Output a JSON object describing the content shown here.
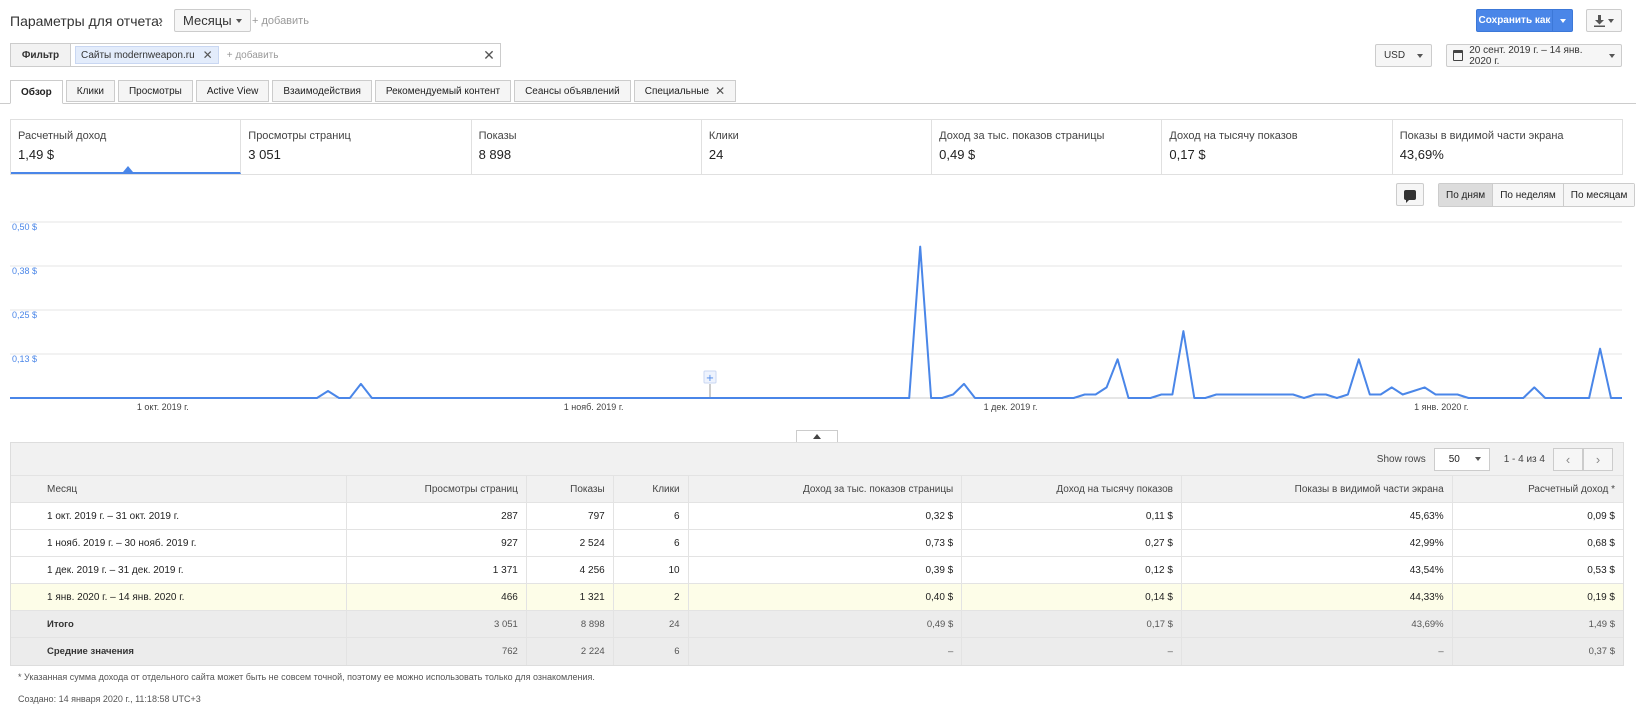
{
  "header": {
    "title": "Параметры для отчета:",
    "dimension": "Месяцы",
    "add_label": "+ добавить",
    "save_label": "Сохранить как"
  },
  "filter": {
    "label": "Фильтр",
    "chip": "Сайты modernweapon.ru",
    "add_placeholder": "+ добавить",
    "currency": "USD",
    "date_range": "20 сент. 2019 г. – 14 янв. 2020 г."
  },
  "tabs": [
    {
      "label": "Обзор"
    },
    {
      "label": "Клики"
    },
    {
      "label": "Просмотры"
    },
    {
      "label": "Active View"
    },
    {
      "label": "Взаимодействия"
    },
    {
      "label": "Рекомендуемый контент"
    },
    {
      "label": "Сеансы объявлений"
    },
    {
      "label": "Специальные"
    }
  ],
  "metrics": [
    {
      "label": "Расчетный доход",
      "value": "1,49 $"
    },
    {
      "label": "Просмотры страниц",
      "value": "3 051"
    },
    {
      "label": "Показы",
      "value": "8 898"
    },
    {
      "label": "Клики",
      "value": "24"
    },
    {
      "label": "Доход за тыс. показов страницы",
      "value": "0,49 $"
    },
    {
      "label": "Доход на тысячу показов",
      "value": "0,17 $"
    },
    {
      "label": "Показы в видимой части экрана",
      "value": "43,69%"
    }
  ],
  "granularity": {
    "day": "По дням",
    "week": "По неделям",
    "month": "По месяцам",
    "selected": "По дням"
  },
  "chart_data": {
    "type": "line",
    "series": [
      {
        "values": [
          0,
          0,
          0,
          0,
          0,
          0,
          0,
          0,
          0,
          0,
          0,
          0,
          0,
          0,
          0,
          0,
          0,
          0,
          0,
          0,
          0,
          0,
          0,
          0,
          0,
          0,
          0,
          0,
          0,
          0.02,
          0,
          0,
          0.04,
          0,
          0,
          0,
          0,
          0,
          0,
          0,
          0,
          0,
          0,
          0,
          0,
          0,
          0,
          0,
          0,
          0,
          0,
          0,
          0,
          0,
          0,
          0,
          0,
          0,
          0,
          0,
          0,
          0,
          0,
          0,
          0,
          0,
          0,
          0,
          0,
          0,
          0,
          0,
          0,
          0,
          0,
          0,
          0,
          0,
          0,
          0,
          0,
          0,
          0,
          0.43,
          0,
          0,
          0.01,
          0.04,
          0,
          0,
          0,
          0,
          0,
          0,
          0,
          0,
          0,
          0,
          0.01,
          0.01,
          0.03,
          0.11,
          0,
          0,
          0,
          0.01,
          0.01,
          0.19,
          0,
          0,
          0.01,
          0.01,
          0.01,
          0.01,
          0.01,
          0.01,
          0.01,
          0.01,
          0,
          0.01,
          0.01,
          0,
          0.01,
          0.11,
          0.01,
          0.01,
          0.03,
          0.01,
          0.02,
          0.03,
          0.01,
          0.01,
          0.01,
          0,
          0,
          0,
          0,
          0,
          0,
          0.03,
          0,
          0,
          0,
          0,
          0,
          0.14,
          0,
          0
        ]
      }
    ],
    "x_start": "2019-09-20",
    "x_end": "2020-01-14",
    "x_ticks": [
      "1 окт. 2019 г.",
      "1 нояб. 2019 г.",
      "1 дек. 2019 г.",
      "1 янв. 2020 г."
    ],
    "y_ticks": [
      "0,50 $",
      "0,38 $",
      "0,25 $",
      "0,13 $"
    ],
    "y_tick_values": [
      0.5,
      0.375,
      0.25,
      0.125
    ],
    "ylim": [
      0,
      0.5
    ],
    "color": "#4a86e8",
    "grid": true
  },
  "table": {
    "show_rows_label": "Show rows",
    "rows_per_page": "50",
    "range_label": "1 - 4 из 4",
    "columns": [
      "Месяц",
      "Просмотры страниц",
      "Показы",
      "Клики",
      "Доход за тыс. показов страницы",
      "Доход на тысячу показов",
      "Показы в видимой части экрана",
      "Расчетный доход *"
    ],
    "rows": [
      [
        "1 окт. 2019 г. – 31 окт. 2019 г.",
        "287",
        "797",
        "6",
        "0,32 $",
        "0,11 $",
        "45,63%",
        "0,09 $"
      ],
      [
        "1 нояб. 2019 г. – 30 нояб. 2019 г.",
        "927",
        "2 524",
        "6",
        "0,73 $",
        "0,27 $",
        "42,99%",
        "0,68 $"
      ],
      [
        "1 дек. 2019 г. – 31 дек. 2019 г.",
        "1 371",
        "4 256",
        "10",
        "0,39 $",
        "0,12 $",
        "43,54%",
        "0,53 $"
      ],
      [
        "1 янв. 2020 г. – 14 янв. 2020 г.",
        "466",
        "1 321",
        "2",
        "0,40 $",
        "0,14 $",
        "44,33%",
        "0,19 $"
      ]
    ],
    "total": [
      "Итого",
      "3 051",
      "8 898",
      "24",
      "0,49 $",
      "0,17 $",
      "43,69%",
      "1,49 $"
    ],
    "average": [
      "Средние значения",
      "762",
      "2 224",
      "6",
      "–",
      "–",
      "–",
      "0,37 $"
    ]
  },
  "footnote": "* Указанная сумма дохода от отдельного сайта может быть не совсем точной, поэтому ее можно использовать только для ознакомления.",
  "created": "Создано: 14 января 2020 г., 11:18:58 UTC+3"
}
